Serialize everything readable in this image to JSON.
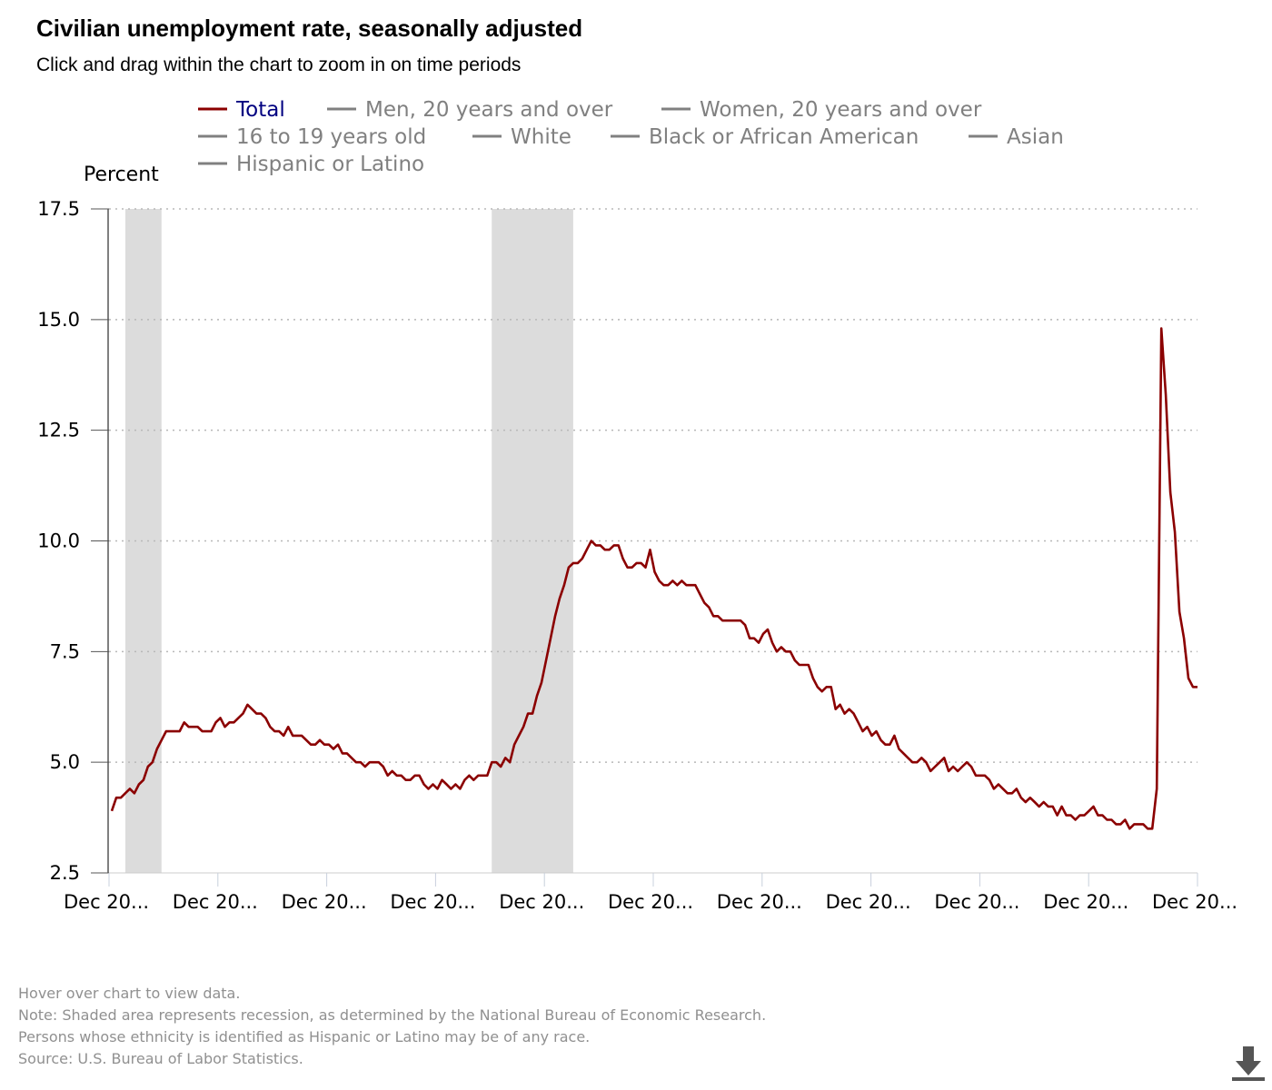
{
  "header": {
    "title": "Civilian unemployment rate, seasonally adjusted",
    "subtitle": "Click and drag within the chart to zoom in on time periods"
  },
  "legend": [
    {
      "label": "Total",
      "active": true
    },
    {
      "label": "Men, 20 years and over",
      "active": false
    },
    {
      "label": "Women, 20 years and over",
      "active": false
    },
    {
      "label": "16 to 19 years old",
      "active": false
    },
    {
      "label": "White",
      "active": false
    },
    {
      "label": "Black or African American",
      "active": false
    },
    {
      "label": "Asian",
      "active": false
    },
    {
      "label": "Hispanic or Latino",
      "active": false
    }
  ],
  "colors": {
    "total_line": "#8b0000",
    "inactive_legend": "#808080",
    "active_legend_text": "#000080",
    "recession_fill": "#dcdcdc",
    "grid": "#b8b8b8",
    "axis": "#555555"
  },
  "chart_data": {
    "type": "line",
    "ylabel": "Percent",
    "ylim": [
      2.5,
      17.5
    ],
    "yticks": [
      "2.5",
      "5.0",
      "7.5",
      "10.0",
      "12.5",
      "15.0",
      "17.5"
    ],
    "xtick_labels": [
      "Dec 20...",
      "Dec 20...",
      "Dec 20...",
      "Dec 20...",
      "Dec 20...",
      "Dec 20...",
      "Dec 20...",
      "Dec 20...",
      "Dec 20...",
      "Dec 20...",
      "Dec 20..."
    ],
    "grid": "horizontal dotted",
    "recessions": [
      {
        "from_month": 3,
        "to_month": 11
      },
      {
        "from_month": 84,
        "to_month": 102
      }
    ],
    "series": [
      {
        "name": "Total",
        "color": "#8b0000",
        "values": [
          3.9,
          4.2,
          4.2,
          4.3,
          4.4,
          4.3,
          4.5,
          4.6,
          4.9,
          5.0,
          5.3,
          5.5,
          5.7,
          5.7,
          5.7,
          5.7,
          5.9,
          5.8,
          5.8,
          5.8,
          5.7,
          5.7,
          5.7,
          5.9,
          6.0,
          5.8,
          5.9,
          5.9,
          6.0,
          6.1,
          6.3,
          6.2,
          6.1,
          6.1,
          6.0,
          5.8,
          5.7,
          5.7,
          5.6,
          5.8,
          5.6,
          5.6,
          5.6,
          5.5,
          5.4,
          5.4,
          5.5,
          5.4,
          5.4,
          5.3,
          5.4,
          5.2,
          5.2,
          5.1,
          5.0,
          5.0,
          4.9,
          5.0,
          5.0,
          5.0,
          4.9,
          4.7,
          4.8,
          4.7,
          4.7,
          4.6,
          4.6,
          4.7,
          4.7,
          4.5,
          4.4,
          4.5,
          4.4,
          4.6,
          4.5,
          4.4,
          4.5,
          4.4,
          4.6,
          4.7,
          4.6,
          4.7,
          4.7,
          4.7,
          5.0,
          5.0,
          4.9,
          5.1,
          5.0,
          5.4,
          5.6,
          5.8,
          6.1,
          6.1,
          6.5,
          6.8,
          7.3,
          7.8,
          8.3,
          8.7,
          9.0,
          9.4,
          9.5,
          9.5,
          9.6,
          9.8,
          10.0,
          9.9,
          9.9,
          9.8,
          9.8,
          9.9,
          9.9,
          9.6,
          9.4,
          9.4,
          9.5,
          9.5,
          9.4,
          9.8,
          9.3,
          9.1,
          9.0,
          9.0,
          9.1,
          9.0,
          9.1,
          9.0,
          9.0,
          9.0,
          8.8,
          8.6,
          8.5,
          8.3,
          8.3,
          8.2,
          8.2,
          8.2,
          8.2,
          8.2,
          8.1,
          7.8,
          7.8,
          7.7,
          7.9,
          8.0,
          7.7,
          7.5,
          7.6,
          7.5,
          7.5,
          7.3,
          7.2,
          7.2,
          7.2,
          6.9,
          6.7,
          6.6,
          6.7,
          6.7,
          6.2,
          6.3,
          6.1,
          6.2,
          6.1,
          5.9,
          5.7,
          5.8,
          5.6,
          5.7,
          5.5,
          5.4,
          5.4,
          5.6,
          5.3,
          5.2,
          5.1,
          5.0,
          5.0,
          5.1,
          5.0,
          4.8,
          4.9,
          5.0,
          5.1,
          4.8,
          4.9,
          4.8,
          4.9,
          5.0,
          4.9,
          4.7,
          4.7,
          4.7,
          4.6,
          4.4,
          4.5,
          4.4,
          4.3,
          4.3,
          4.4,
          4.2,
          4.1,
          4.2,
          4.1,
          4.0,
          4.1,
          4.0,
          4.0,
          3.8,
          4.0,
          3.8,
          3.8,
          3.7,
          3.8,
          3.8,
          3.9,
          4.0,
          3.8,
          3.8,
          3.7,
          3.7,
          3.6,
          3.6,
          3.7,
          3.5,
          3.6,
          3.6,
          3.6,
          3.5,
          3.5,
          4.4,
          14.8,
          13.3,
          11.1,
          10.2,
          8.4,
          7.8,
          6.9,
          6.7,
          6.7
        ]
      }
    ]
  },
  "notes": [
    "Hover over chart to view data.",
    "Note: Shaded area represents recession, as determined by the National Bureau of Economic Research.",
    "Persons whose ethnicity is identified as Hispanic or Latino may be of any race.",
    "Source: U.S. Bureau of Labor Statistics."
  ],
  "download": {
    "icon": "download-icon"
  }
}
